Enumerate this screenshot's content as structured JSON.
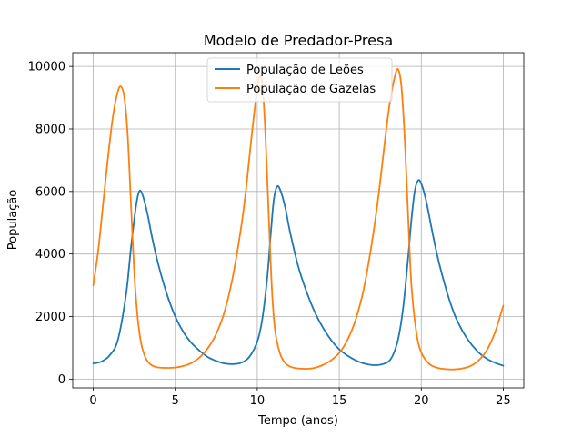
{
  "chart_data": {
    "type": "line",
    "title": "Modelo de Predador-Presa",
    "xlabel": "Tempo (anos)",
    "ylabel": "População",
    "xlim": [
      -1.25,
      26.25
    ],
    "ylim": [
      -280,
      10440
    ],
    "xticks": [
      0,
      5,
      10,
      15,
      20,
      25
    ],
    "xtick_labels": [
      "0",
      "5",
      "10",
      "15",
      "20",
      "25"
    ],
    "yticks": [
      0,
      2000,
      4000,
      6000,
      8000,
      10000
    ],
    "ytick_labels": [
      "0",
      "2000",
      "4000",
      "6000",
      "8000",
      "10000"
    ],
    "grid": true,
    "legend_position": "top-center",
    "series": [
      {
        "name": "População de Leões",
        "color": "#1f77b4",
        "x": [
          0,
          0.5,
          1.0,
          1.5,
          2.0,
          2.3,
          2.6,
          2.8,
          3.0,
          3.3,
          3.6,
          4.0,
          4.5,
          5.0,
          5.5,
          6.0,
          6.5,
          7.0,
          7.5,
          8.0,
          8.5,
          9.0,
          9.5,
          10.0,
          10.3,
          10.6,
          10.8,
          11.0,
          11.2,
          11.4,
          11.7,
          12.0,
          12.5,
          13.0,
          13.5,
          14.0,
          14.5,
          15.0,
          15.5,
          16.0,
          16.5,
          17.0,
          17.5,
          18.0,
          18.3,
          18.6,
          18.9,
          19.2,
          19.4,
          19.6,
          19.8,
          20.0,
          20.3,
          20.6,
          21.0,
          21.5,
          22.0,
          22.5,
          23.0,
          23.5,
          24.0,
          24.5,
          25.0
        ],
        "y": [
          500,
          560,
          760,
          1250,
          2700,
          4200,
          5500,
          6000,
          5900,
          5300,
          4500,
          3600,
          2700,
          2000,
          1500,
          1150,
          900,
          700,
          580,
          500,
          480,
          520,
          700,
          1200,
          1900,
          3200,
          4500,
          5700,
          6150,
          6050,
          5500,
          4700,
          3600,
          2800,
          2150,
          1650,
          1250,
          950,
          750,
          600,
          500,
          450,
          460,
          560,
          800,
          1300,
          2300,
          3900,
          5100,
          6000,
          6350,
          6250,
          5700,
          4900,
          3900,
          2900,
          2100,
          1550,
          1150,
          850,
          650,
          520,
          430
        ]
      },
      {
        "name": "População de Gazelas",
        "color": "#ff7f0e",
        "x": [
          0,
          0.3,
          0.6,
          0.9,
          1.2,
          1.5,
          1.7,
          1.9,
          2.1,
          2.3,
          2.5,
          2.7,
          2.9,
          3.1,
          3.3,
          3.6,
          4.0,
          4.5,
          5.0,
          5.5,
          6.0,
          6.5,
          7.0,
          7.5,
          8.0,
          8.5,
          9.0,
          9.3,
          9.6,
          9.9,
          10.1,
          10.3,
          10.5,
          10.7,
          10.9,
          11.1,
          11.4,
          11.7,
          12.0,
          12.5,
          13.0,
          13.5,
          14.0,
          14.5,
          15.0,
          15.5,
          16.0,
          16.5,
          17.0,
          17.4,
          17.8,
          18.1,
          18.4,
          18.6,
          18.8,
          19.0,
          19.2,
          19.4,
          19.7,
          20.0,
          20.5,
          21.0,
          21.5,
          22.0,
          22.5,
          23.0,
          23.5,
          24.0,
          24.5,
          25.0
        ],
        "y": [
          3000,
          4100,
          5600,
          7100,
          8400,
          9200,
          9350,
          9000,
          7800,
          5600,
          3400,
          2000,
          1200,
          800,
          580,
          430,
          370,
          360,
          370,
          420,
          520,
          700,
          1000,
          1450,
          2150,
          3250,
          4800,
          6000,
          7500,
          8900,
          9600,
          9500,
          7800,
          5200,
          2800,
          1500,
          800,
          520,
          400,
          340,
          330,
          360,
          450,
          600,
          840,
          1250,
          1900,
          2900,
          4400,
          5900,
          7700,
          8900,
          9700,
          9900,
          9300,
          7600,
          5200,
          3000,
          1500,
          850,
          480,
          360,
          320,
          310,
          340,
          420,
          600,
          930,
          1500,
          2350
        ]
      }
    ]
  }
}
